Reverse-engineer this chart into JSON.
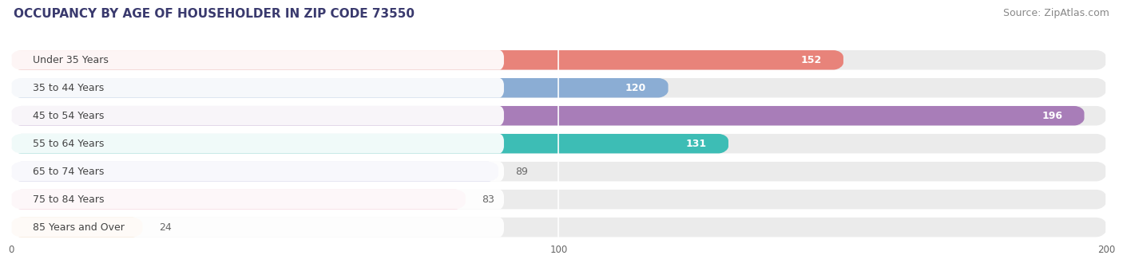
{
  "title": "OCCUPANCY BY AGE OF HOUSEHOLDER IN ZIP CODE 73550",
  "source": "Source: ZipAtlas.com",
  "categories": [
    "Under 35 Years",
    "35 to 44 Years",
    "45 to 54 Years",
    "55 to 64 Years",
    "65 to 74 Years",
    "75 to 84 Years",
    "85 Years and Over"
  ],
  "values": [
    152,
    120,
    196,
    131,
    89,
    83,
    24
  ],
  "bar_colors": [
    "#E8837A",
    "#8BADD4",
    "#A87DB8",
    "#3DBDB5",
    "#A8A8D8",
    "#F0A0B8",
    "#F5C896"
  ],
  "xlim": [
    0,
    200
  ],
  "xticks": [
    0,
    100,
    200
  ],
  "title_fontsize": 11,
  "source_fontsize": 9,
  "label_fontsize": 9,
  "value_fontsize": 9,
  "background_color": "#ffffff",
  "bar_bg_color": "#f5f5f5",
  "row_bg_color": "#f0f0f0"
}
